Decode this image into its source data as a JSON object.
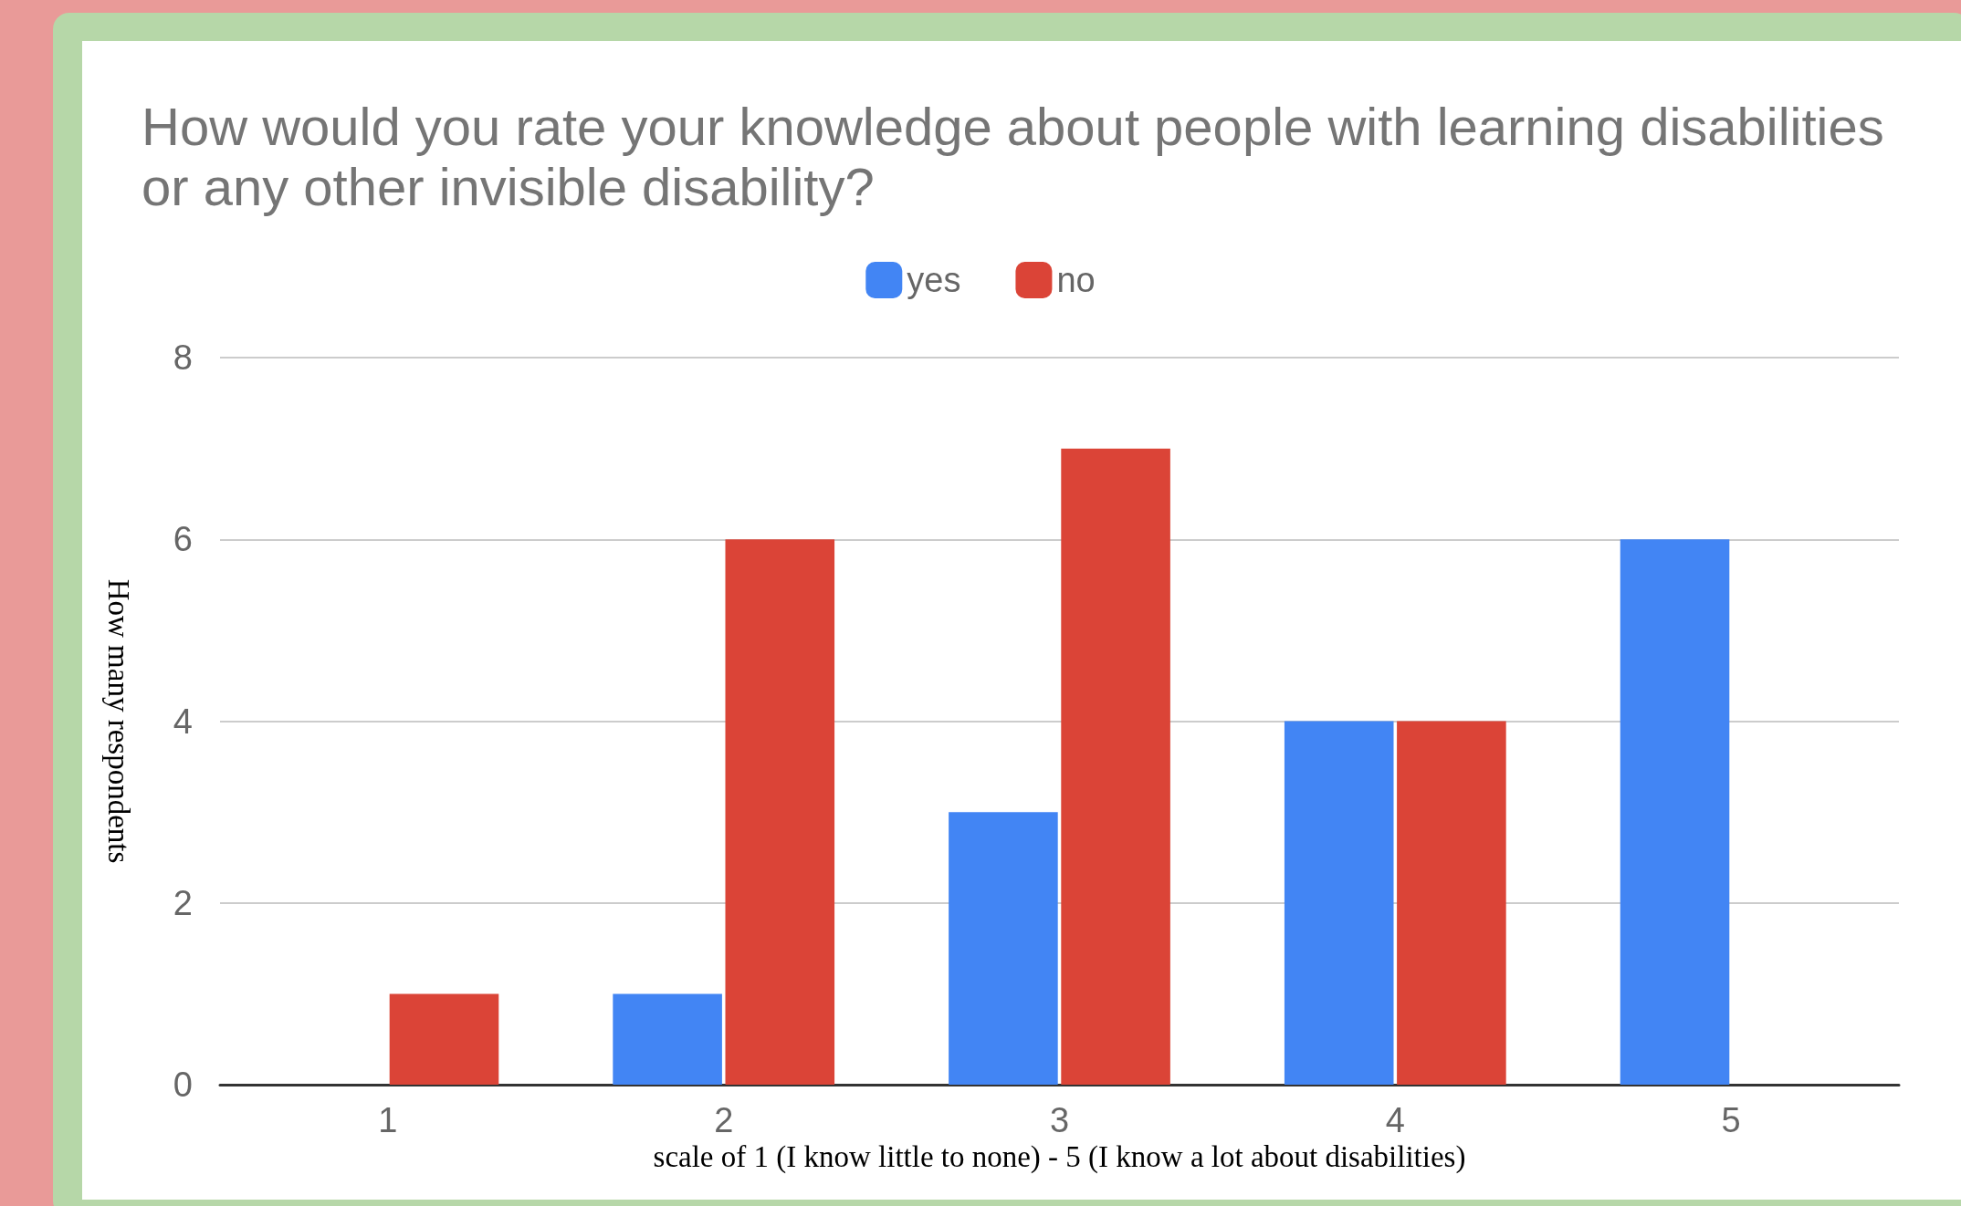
{
  "chart_data": {
    "type": "bar",
    "title": "How would you rate your knowledge about people with learning disabilities or any other invisible disability?",
    "xlabel": "scale of 1 (I know little to none) - 5 (I know a lot about disabilities)",
    "ylabel": "How many respondents",
    "categories": [
      "1",
      "2",
      "3",
      "4",
      "5"
    ],
    "series": [
      {
        "name": "yes",
        "color": "#4285f4",
        "values": [
          0,
          1,
          3,
          4,
          6
        ]
      },
      {
        "name": "no",
        "color": "#db4437",
        "values": [
          1,
          6,
          7,
          4,
          0
        ]
      }
    ],
    "ylim": [
      0,
      8
    ],
    "yticks": [
      0,
      2,
      4,
      6,
      8
    ],
    "grid": "y",
    "legend": "top"
  }
}
